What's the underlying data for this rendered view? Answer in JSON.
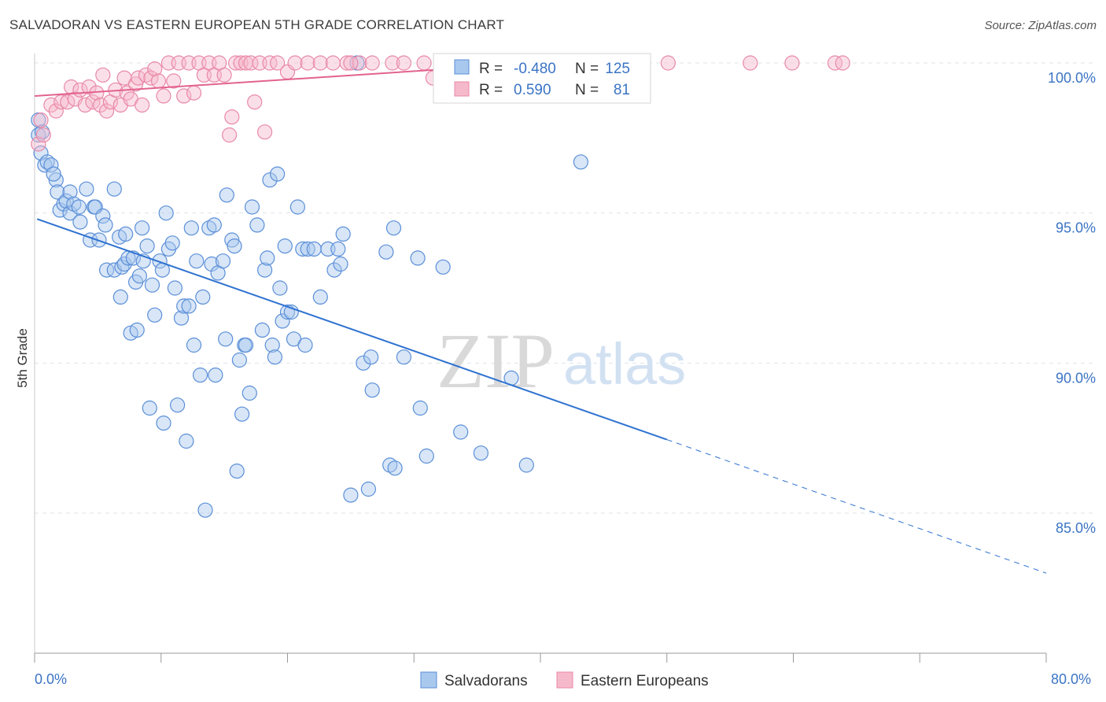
{
  "title": "SALVADORAN VS EASTERN EUROPEAN 5TH GRADE CORRELATION CHART",
  "source": "Source: ZipAtlas.com",
  "watermark": {
    "zip": "ZIP",
    "atlas": "atlas"
  },
  "colors": {
    "blue_fill": "#a8c8ee",
    "blue_stroke": "#5b8fd8",
    "blue_line": "#2f72d0",
    "pink_fill": "#f6b9cc",
    "pink_stroke": "#e889a8",
    "pink_line": "#e2638f",
    "tick_label": "#3b74c4",
    "grid": "#dde3ea"
  },
  "legend": {
    "r_label": "R =",
    "n_label": "N =",
    "rows": [
      {
        "series": "Salvadorans",
        "r": "-0.480",
        "n": "125"
      },
      {
        "series": "Eastern Europeans",
        "r": "0.590",
        "n": "81"
      }
    ]
  },
  "chart_data": {
    "type": "scatter",
    "title": "SALVADORAN VS EASTERN EUROPEAN 5TH GRADE CORRELATION CHART",
    "xlabel": "",
    "ylabel": "5th Grade",
    "xlim": [
      0,
      80
    ],
    "ylim": [
      80.5,
      100.8
    ],
    "x_tick_labels": [
      "0.0%",
      "80.0%"
    ],
    "y_ticks": [
      85,
      90,
      95,
      100
    ],
    "y_tick_labels": [
      "85.0%",
      "90.0%",
      "95.0%",
      "100.0%"
    ],
    "grid": true,
    "legend_position": "top-center",
    "series": [
      {
        "name": "Salvadorans",
        "trend": {
          "x0": 0.2,
          "y0": 94.8,
          "x1": 50.0,
          "y1": 87.45,
          "dashed_to_x": 80.0,
          "dashed_to_y": 83.0
        },
        "points": [
          [
            0.3,
            98.1
          ],
          [
            0.3,
            97.6
          ],
          [
            0.5,
            97.0
          ],
          [
            0.8,
            96.6
          ],
          [
            1.0,
            96.7
          ],
          [
            1.3,
            96.6
          ],
          [
            1.7,
            96.1
          ],
          [
            1.8,
            95.7
          ],
          [
            2.0,
            95.1
          ],
          [
            2.3,
            95.3
          ],
          [
            2.5,
            95.4
          ],
          [
            2.8,
            95.7
          ],
          [
            2.8,
            95.0
          ],
          [
            3.1,
            95.3
          ],
          [
            3.5,
            95.2
          ],
          [
            3.6,
            94.7
          ],
          [
            4.1,
            95.8
          ],
          [
            4.4,
            94.1
          ],
          [
            4.7,
            95.2
          ],
          [
            4.8,
            95.2
          ],
          [
            5.1,
            94.1
          ],
          [
            5.4,
            94.9
          ],
          [
            5.6,
            94.6
          ],
          [
            5.7,
            93.1
          ],
          [
            6.3,
            95.8
          ],
          [
            6.3,
            93.1
          ],
          [
            6.7,
            94.2
          ],
          [
            6.8,
            92.2
          ],
          [
            6.9,
            93.2
          ],
          [
            7.1,
            93.3
          ],
          [
            7.2,
            94.3
          ],
          [
            7.4,
            93.5
          ],
          [
            7.6,
            91.0
          ],
          [
            7.8,
            93.5
          ],
          [
            8.0,
            92.7
          ],
          [
            8.1,
            91.1
          ],
          [
            8.3,
            92.9
          ],
          [
            8.5,
            94.5
          ],
          [
            8.6,
            93.4
          ],
          [
            8.9,
            93.9
          ],
          [
            9.1,
            88.5
          ],
          [
            9.3,
            92.6
          ],
          [
            9.5,
            91.6
          ],
          [
            9.9,
            93.4
          ],
          [
            10.1,
            93.1
          ],
          [
            10.2,
            88.0
          ],
          [
            10.4,
            95.0
          ],
          [
            10.6,
            93.8
          ],
          [
            10.9,
            94.0
          ],
          [
            11.1,
            92.5
          ],
          [
            11.3,
            88.6
          ],
          [
            11.6,
            91.5
          ],
          [
            11.8,
            91.9
          ],
          [
            12.0,
            87.4
          ],
          [
            12.2,
            91.9
          ],
          [
            12.4,
            94.5
          ],
          [
            12.6,
            90.6
          ],
          [
            12.8,
            93.4
          ],
          [
            13.1,
            89.6
          ],
          [
            13.3,
            92.2
          ],
          [
            13.5,
            85.1
          ],
          [
            13.8,
            94.5
          ],
          [
            14.0,
            93.3
          ],
          [
            14.2,
            94.6
          ],
          [
            14.3,
            89.6
          ],
          [
            14.5,
            93.0
          ],
          [
            14.9,
            93.4
          ],
          [
            15.1,
            90.8
          ],
          [
            15.2,
            95.6
          ],
          [
            15.6,
            94.1
          ],
          [
            15.8,
            93.9
          ],
          [
            16.0,
            86.4
          ],
          [
            16.2,
            90.1
          ],
          [
            16.4,
            88.3
          ],
          [
            16.6,
            90.6
          ],
          [
            16.7,
            90.6
          ],
          [
            17.0,
            89.0
          ],
          [
            17.2,
            95.2
          ],
          [
            17.6,
            94.6
          ],
          [
            18.0,
            91.1
          ],
          [
            18.2,
            93.1
          ],
          [
            18.4,
            93.5
          ],
          [
            18.6,
            96.1
          ],
          [
            18.8,
            90.6
          ],
          [
            19.0,
            90.2
          ],
          [
            19.2,
            96.3
          ],
          [
            19.4,
            92.5
          ],
          [
            19.6,
            91.4
          ],
          [
            19.8,
            93.9
          ],
          [
            20.0,
            91.7
          ],
          [
            20.3,
            91.7
          ],
          [
            20.5,
            90.8
          ],
          [
            20.8,
            95.2
          ],
          [
            21.2,
            93.8
          ],
          [
            21.4,
            90.6
          ],
          [
            21.6,
            93.8
          ],
          [
            22.1,
            93.8
          ],
          [
            22.6,
            92.2
          ],
          [
            23.2,
            93.8
          ],
          [
            23.7,
            93.1
          ],
          [
            24.0,
            93.8
          ],
          [
            24.2,
            93.3
          ],
          [
            24.4,
            94.3
          ],
          [
            25.0,
            85.6
          ],
          [
            25.5,
            100.0
          ],
          [
            26.0,
            90.0
          ],
          [
            26.4,
            85.8
          ],
          [
            26.6,
            90.2
          ],
          [
            26.7,
            89.1
          ],
          [
            27.8,
            93.7
          ],
          [
            28.1,
            86.6
          ],
          [
            28.4,
            94.5
          ],
          [
            28.5,
            86.5
          ],
          [
            29.2,
            90.2
          ],
          [
            30.3,
            93.5
          ],
          [
            30.5,
            88.5
          ],
          [
            31.0,
            86.9
          ],
          [
            32.3,
            93.2
          ],
          [
            33.7,
            87.7
          ],
          [
            35.3,
            87.0
          ],
          [
            37.7,
            89.5
          ],
          [
            38.9,
            86.6
          ],
          [
            43.2,
            96.7
          ],
          [
            0.6,
            97.7
          ],
          [
            1.5,
            96.3
          ]
        ]
      },
      {
        "name": "Eastern Europeans",
        "trend": {
          "x0": 0.0,
          "y0": 98.9,
          "x1": 40.0,
          "y1": 100.0
        },
        "points": [
          [
            0.3,
            97.3
          ],
          [
            0.5,
            98.1
          ],
          [
            0.7,
            97.6
          ],
          [
            1.3,
            98.6
          ],
          [
            1.7,
            98.4
          ],
          [
            2.1,
            98.7
          ],
          [
            2.6,
            98.7
          ],
          [
            2.9,
            99.2
          ],
          [
            3.2,
            98.8
          ],
          [
            3.6,
            99.1
          ],
          [
            4.0,
            98.6
          ],
          [
            4.3,
            99.2
          ],
          [
            4.6,
            98.7
          ],
          [
            4.9,
            99.0
          ],
          [
            5.2,
            98.6
          ],
          [
            5.4,
            99.6
          ],
          [
            5.7,
            98.4
          ],
          [
            6.0,
            98.7
          ],
          [
            6.4,
            99.1
          ],
          [
            6.8,
            98.6
          ],
          [
            7.1,
            99.5
          ],
          [
            7.3,
            99.0
          ],
          [
            7.6,
            98.8
          ],
          [
            8.0,
            99.3
          ],
          [
            8.2,
            99.5
          ],
          [
            8.5,
            98.6
          ],
          [
            8.8,
            99.6
          ],
          [
            9.2,
            99.5
          ],
          [
            9.5,
            99.8
          ],
          [
            9.8,
            99.4
          ],
          [
            10.2,
            98.9
          ],
          [
            10.6,
            100.0
          ],
          [
            11.0,
            99.4
          ],
          [
            11.4,
            100.0
          ],
          [
            11.8,
            98.9
          ],
          [
            12.2,
            100.0
          ],
          [
            12.6,
            99.0
          ],
          [
            13.0,
            100.0
          ],
          [
            13.4,
            99.6
          ],
          [
            13.8,
            100.0
          ],
          [
            14.2,
            99.6
          ],
          [
            14.6,
            100.0
          ],
          [
            15.0,
            99.6
          ],
          [
            15.4,
            97.6
          ],
          [
            15.6,
            98.2
          ],
          [
            15.9,
            100.0
          ],
          [
            16.3,
            100.0
          ],
          [
            16.7,
            100.0
          ],
          [
            17.1,
            100.0
          ],
          [
            17.4,
            98.7
          ],
          [
            17.8,
            100.0
          ],
          [
            18.2,
            97.7
          ],
          [
            18.6,
            100.0
          ],
          [
            19.2,
            100.0
          ],
          [
            20.0,
            99.7
          ],
          [
            20.6,
            100.0
          ],
          [
            21.6,
            100.0
          ],
          [
            22.6,
            100.0
          ],
          [
            23.6,
            100.0
          ],
          [
            24.7,
            100.0
          ],
          [
            25.7,
            100.0
          ],
          [
            26.7,
            100.0
          ],
          [
            28.3,
            100.0
          ],
          [
            29.2,
            100.0
          ],
          [
            30.8,
            100.0
          ],
          [
            32.1,
            100.0
          ],
          [
            33.1,
            100.0
          ],
          [
            34.3,
            100.0
          ],
          [
            35.7,
            100.0
          ],
          [
            37.4,
            100.0
          ],
          [
            40.0,
            99.6
          ],
          [
            42.1,
            100.0
          ],
          [
            46.0,
            100.0
          ],
          [
            47.8,
            100.0
          ],
          [
            50.1,
            100.0
          ],
          [
            56.6,
            100.0
          ],
          [
            59.9,
            100.0
          ],
          [
            63.3,
            100.0
          ],
          [
            63.9,
            100.0
          ],
          [
            31.5,
            99.5
          ],
          [
            25.0,
            100.0
          ]
        ]
      }
    ]
  }
}
